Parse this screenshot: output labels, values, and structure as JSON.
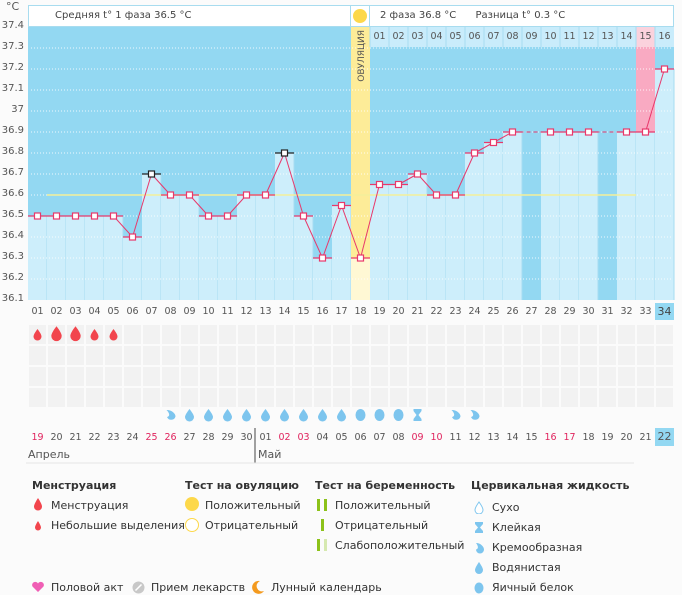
{
  "chart_data": {
    "type": "line",
    "title": "",
    "ylabel": "°C",
    "ylim": [
      36.1,
      37.4
    ],
    "yticks": [
      "37.4",
      "37.3",
      "37.2",
      "37.1",
      "37",
      "36.9",
      "36.8",
      "36.7",
      "36.6",
      "36.5",
      "36.4",
      "36.3",
      "36.2",
      "36.1"
    ],
    "cycle_days": [
      "01",
      "02",
      "03",
      "04",
      "05",
      "06",
      "07",
      "08",
      "09",
      "10",
      "11",
      "12",
      "13",
      "14",
      "15",
      "16",
      "17",
      "18",
      "19",
      "20",
      "21",
      "22",
      "23",
      "24",
      "25",
      "26",
      "27",
      "28",
      "29",
      "30",
      "31",
      "32",
      "33",
      "34"
    ],
    "temperatures": [
      36.5,
      36.5,
      36.5,
      36.5,
      36.5,
      36.4,
      36.7,
      36.6,
      36.6,
      36.5,
      36.5,
      36.6,
      36.6,
      36.8,
      36.5,
      36.3,
      36.55,
      36.3,
      36.65,
      36.65,
      36.7,
      36.6,
      36.6,
      36.8,
      36.85,
      36.9,
      null,
      36.9,
      36.9,
      36.9,
      null,
      36.9,
      36.9,
      37.2
    ],
    "highlighted_points": [
      7,
      14
    ],
    "coverline": 36.6,
    "ovulation_day": 18,
    "ovulation_label": "ОВУЛЯЦИЯ",
    "phase2_days": [
      "01",
      "02",
      "03",
      "04",
      "05",
      "06",
      "07",
      "08",
      "09",
      "10",
      "11",
      "12",
      "13",
      "14",
      "15",
      "16"
    ],
    "phase2_pink_day": "15",
    "current_day": "34",
    "dates": [
      "19",
      "20",
      "21",
      "22",
      "23",
      "24",
      "25",
      "26",
      "27",
      "28",
      "29",
      "30",
      "01",
      "02",
      "03",
      "04",
      "05",
      "06",
      "07",
      "08",
      "09",
      "10",
      "11",
      "12",
      "13",
      "14",
      "15",
      "16",
      "17",
      "18",
      "19",
      "20",
      "21",
      "22"
    ],
    "red_dates_idx": [
      0,
      6,
      7,
      13,
      14,
      20,
      21,
      27,
      28
    ],
    "months": [
      {
        "label": "Апрель",
        "start": 0
      },
      {
        "label": "Май",
        "start": 12
      }
    ],
    "menstruation": [
      "small",
      "large",
      "large",
      "small",
      "small"
    ],
    "cervical_fluid": {
      "8": "creamy",
      "9": "watery",
      "10": "watery",
      "11": "watery",
      "12": "watery",
      "13": "watery",
      "14": "watery",
      "15": "watery",
      "16": "watery",
      "17": "watery",
      "18": "egg",
      "19": "egg",
      "20": "egg",
      "21": "sticky",
      "23": "creamy",
      "24": "creamy"
    }
  },
  "header": {
    "phase1": "Средняя t° 1 фаза 36.5 °C",
    "phase2": "2 фаза 36.8 °C",
    "diff": "Разница t° 0.3 °C"
  },
  "legend": {
    "menstruation": {
      "title": "Менструация",
      "items": [
        "Менструация",
        "Небольшие выделения"
      ]
    },
    "ovulation_test": {
      "title": "Тест на овуляцию",
      "items": [
        "Положительный",
        "Отрицательный"
      ]
    },
    "pregnancy_test": {
      "title": "Тест на беременность",
      "items": [
        "Положительный",
        "Отрицательный",
        "Слабоположительный"
      ]
    },
    "cervical": {
      "title": "Цервикальная жидкость",
      "items": [
        "Сухо",
        "Клейкая",
        "Кремообразная",
        "Водянистая",
        "Яичный белок"
      ]
    },
    "other": [
      "Половой акт",
      "Прием лекарств",
      "Лунный календарь"
    ]
  },
  "colors": {
    "sky": "#93d8f2",
    "bar": "#cdeefb",
    "line": "#e8386b",
    "ovulation": "#fdec98",
    "pink": "#f9aac2",
    "coverline": "#f4ef9a",
    "blood": "#f2454d",
    "fluid": "#7dc5ee"
  }
}
